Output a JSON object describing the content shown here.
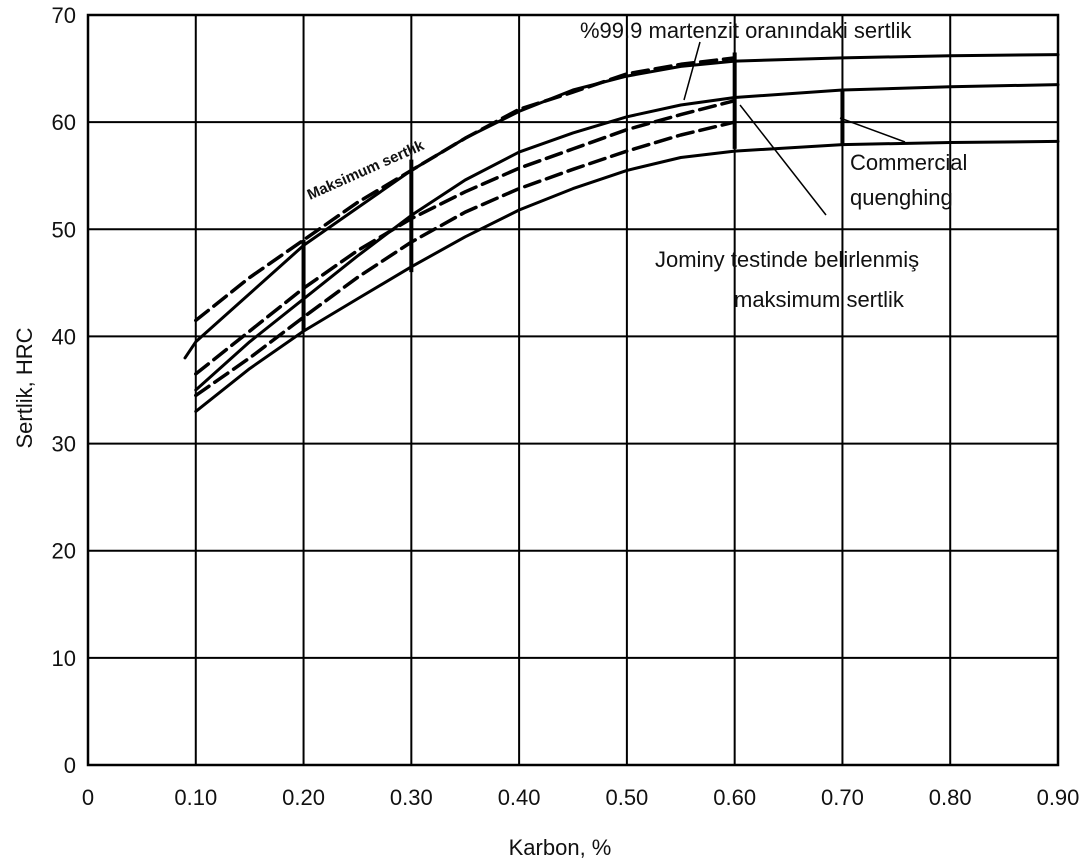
{
  "chart_data": {
    "type": "line",
    "title": "",
    "xlabel": "Karbon, %",
    "ylabel": "Sertlik, HRC",
    "xlim": [
      0,
      0.9
    ],
    "ylim": [
      0,
      70
    ],
    "grid": true,
    "x_ticks": [
      {
        "value": 0,
        "label": "0"
      },
      {
        "value": 0.1,
        "label": "0.10"
      },
      {
        "value": 0.2,
        "label": "0.20"
      },
      {
        "value": 0.3,
        "label": "0.30"
      },
      {
        "value": 0.4,
        "label": "0.40"
      },
      {
        "value": 0.5,
        "label": "0.50"
      },
      {
        "value": 0.6,
        "label": "0.60"
      },
      {
        "value": 0.7,
        "label": "0.70"
      },
      {
        "value": 0.8,
        "label": "0.80"
      },
      {
        "value": 0.9,
        "label": "0.90"
      }
    ],
    "y_ticks": [
      {
        "value": 0,
        "label": "0"
      },
      {
        "value": 10,
        "label": "10"
      },
      {
        "value": 20,
        "label": "20"
      },
      {
        "value": 30,
        "label": "30"
      },
      {
        "value": 40,
        "label": "40"
      },
      {
        "value": 50,
        "label": "50"
      },
      {
        "value": 60,
        "label": "60"
      },
      {
        "value": 70,
        "label": "70"
      }
    ],
    "series": [
      {
        "style": "solid",
        "color": "#000000",
        "x": [
          0.09,
          0.1,
          0.15,
          0.2,
          0.25,
          0.3,
          0.35,
          0.4,
          0.45,
          0.5,
          0.55,
          0.6,
          0.7,
          0.8,
          0.9
        ],
        "y": [
          38,
          39.5,
          44,
          48.5,
          52,
          55.5,
          58.5,
          61,
          63,
          64.3,
          65.2,
          65.7,
          66,
          66.2,
          66.3
        ]
      },
      {
        "style": "dashed",
        "color": "#000000",
        "x": [
          0.1,
          0.15,
          0.2,
          0.25,
          0.3,
          0.35,
          0.4,
          0.45,
          0.5,
          0.55,
          0.6
        ],
        "y": [
          41.5,
          45.5,
          49,
          52.5,
          55.5,
          58.5,
          61.2,
          62.8,
          64.5,
          65.4,
          66
        ]
      },
      {
        "style": "solid",
        "color": "#000000",
        "x": [
          0.1,
          0.15,
          0.2,
          0.25,
          0.3,
          0.35,
          0.4,
          0.45,
          0.5,
          0.55,
          0.6,
          0.7,
          0.8,
          0.9
        ],
        "y": [
          35,
          39.5,
          43.5,
          47.5,
          51.3,
          54.6,
          57.2,
          59,
          60.5,
          61.6,
          62.3,
          63,
          63.3,
          63.5
        ]
      },
      {
        "style": "dashed",
        "color": "#000000",
        "x": [
          0.1,
          0.15,
          0.2,
          0.25,
          0.3,
          0.35,
          0.4,
          0.45,
          0.5,
          0.55,
          0.6
        ],
        "y": [
          36.5,
          40.5,
          44.5,
          48,
          51,
          53.5,
          55.7,
          57.5,
          59.3,
          60.7,
          62
        ]
      },
      {
        "style": "dashed",
        "color": "#000000",
        "x": [
          0.1,
          0.15,
          0.2,
          0.25,
          0.3,
          0.35,
          0.4,
          0.45,
          0.5,
          0.55,
          0.6
        ],
        "y": [
          34.5,
          38,
          41.8,
          45.5,
          48.8,
          51.6,
          53.8,
          55.6,
          57.3,
          58.8,
          60
        ]
      },
      {
        "style": "solid",
        "color": "#000000",
        "x": [
          0.1,
          0.15,
          0.2,
          0.25,
          0.3,
          0.35,
          0.4,
          0.45,
          0.5,
          0.55,
          0.6,
          0.7,
          0.8,
          0.9
        ],
        "y": [
          33,
          37,
          40.5,
          43.5,
          46.5,
          49.3,
          51.8,
          53.8,
          55.5,
          56.7,
          57.3,
          57.9,
          58.1,
          58.2
        ]
      }
    ],
    "annotations": [
      {
        "text": "%99.9 martenzit oranındaki sertlik"
      },
      {
        "text": "Maksimum sertlik"
      },
      {
        "text": "Commercial"
      },
      {
        "text": "quenghing"
      },
      {
        "text": "Jominy testinde belirlenmiş"
      },
      {
        "text": "maksimum sertlik"
      }
    ]
  }
}
